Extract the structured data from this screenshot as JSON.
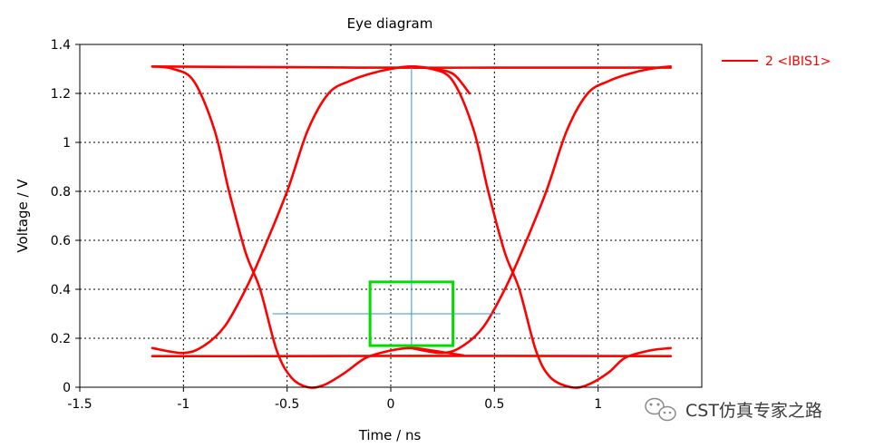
{
  "chart_data": {
    "type": "line",
    "title": "Eye diagram",
    "xlabel": "Time / ns",
    "ylabel": "Voltage / V",
    "xlim": [
      -1.5,
      1.5
    ],
    "ylim": [
      0,
      1.4
    ],
    "x_ticks": [
      -1.5,
      -1,
      -0.5,
      0,
      0.5,
      1
    ],
    "x_tick_labels": [
      "-1.5",
      "-1",
      "-0.5",
      "0",
      "0.5",
      "1"
    ],
    "y_ticks": [
      0,
      0.2,
      0.4,
      0.6,
      0.8,
      1,
      1.2,
      1.4
    ],
    "y_tick_labels": [
      "0",
      "0.2",
      "0.4",
      "0.6",
      "0.8",
      "1",
      "1.2",
      "1.4"
    ],
    "grid": true,
    "legend": {
      "position": "outside-right",
      "entries": [
        {
          "label": "2 <IBIS1>",
          "color": "#ff0000"
        }
      ]
    },
    "series": [
      {
        "name": "2 <IBIS1>",
        "color": "#ff0000",
        "traces": [
          {
            "id": "high-rail",
            "points": [
              [
                -1.15,
                1.31
              ],
              [
                -0.5,
                1.307
              ],
              [
                0,
                1.305
              ],
              [
                0.5,
                1.305
              ],
              [
                1.35,
                1.305
              ]
            ]
          },
          {
            "id": "low-rail",
            "points": [
              [
                -1.15,
                0.127
              ],
              [
                -0.5,
                0.127
              ],
              [
                0,
                0.128
              ],
              [
                0.5,
                0.128
              ],
              [
                1.35,
                0.127
              ]
            ]
          },
          {
            "id": "fall-left",
            "points": [
              [
                -1.15,
                1.31
              ],
              [
                -1.05,
                1.3
              ],
              [
                -0.95,
                1.25
              ],
              [
                -0.85,
                1.05
              ],
              [
                -0.78,
                0.8
              ],
              [
                -0.7,
                0.55
              ],
              [
                -0.63,
                0.4
              ],
              [
                -0.55,
                0.15
              ],
              [
                -0.48,
                0.04
              ],
              [
                -0.4,
                0.0
              ],
              [
                -0.32,
                0.01
              ],
              [
                -0.22,
                0.06
              ],
              [
                -0.12,
                0.12
              ],
              [
                0.0,
                0.15
              ],
              [
                0.1,
                0.16
              ],
              [
                0.2,
                0.15
              ],
              [
                0.35,
                0.13
              ]
            ]
          },
          {
            "id": "rise-left",
            "points": [
              [
                -1.15,
                0.16
              ],
              [
                -1.0,
                0.14
              ],
              [
                -0.9,
                0.17
              ],
              [
                -0.8,
                0.25
              ],
              [
                -0.7,
                0.4
              ],
              [
                -0.62,
                0.55
              ],
              [
                -0.5,
                0.8
              ],
              [
                -0.4,
                1.05
              ],
              [
                -0.3,
                1.2
              ],
              [
                -0.2,
                1.25
              ],
              [
                -0.1,
                1.28
              ],
              [
                0.0,
                1.3
              ],
              [
                0.1,
                1.31
              ],
              [
                0.2,
                1.3
              ],
              [
                0.3,
                1.28
              ],
              [
                0.38,
                1.2
              ]
            ]
          },
          {
            "id": "fall-right",
            "points": [
              [
                0.1,
                1.31
              ],
              [
                0.2,
                1.3
              ],
              [
                0.3,
                1.25
              ],
              [
                0.4,
                1.05
              ],
              [
                0.47,
                0.8
              ],
              [
                0.55,
                0.55
              ],
              [
                0.62,
                0.4
              ],
              [
                0.7,
                0.15
              ],
              [
                0.77,
                0.04
              ],
              [
                0.87,
                0.0
              ],
              [
                0.95,
                0.01
              ],
              [
                1.05,
                0.06
              ],
              [
                1.13,
                0.12
              ],
              [
                1.25,
                0.15
              ],
              [
                1.35,
                0.16
              ]
            ]
          },
          {
            "id": "rise-right",
            "points": [
              [
                0.1,
                0.16
              ],
              [
                0.25,
                0.14
              ],
              [
                0.35,
                0.17
              ],
              [
                0.45,
                0.25
              ],
              [
                0.55,
                0.4
              ],
              [
                0.63,
                0.55
              ],
              [
                0.75,
                0.8
              ],
              [
                0.85,
                1.05
              ],
              [
                0.95,
                1.2
              ],
              [
                1.05,
                1.25
              ],
              [
                1.15,
                1.28
              ],
              [
                1.25,
                1.3
              ],
              [
                1.35,
                1.31
              ]
            ]
          }
        ]
      }
    ],
    "crosshair": {
      "color": "#3c8fdc",
      "vertical_x": 0.1,
      "vertical_y_range": [
        0.165,
        1.305
      ],
      "horizontal_y": 0.3,
      "horizontal_x_range": [
        -0.57,
        0.53
      ]
    },
    "eye_mask": {
      "color": "#00dd00",
      "x_range": [
        -0.1,
        0.3
      ],
      "y_range": [
        0.17,
        0.43
      ]
    }
  },
  "watermark": {
    "text": "CST仿真专家之路",
    "icon": "wechat-icon"
  }
}
